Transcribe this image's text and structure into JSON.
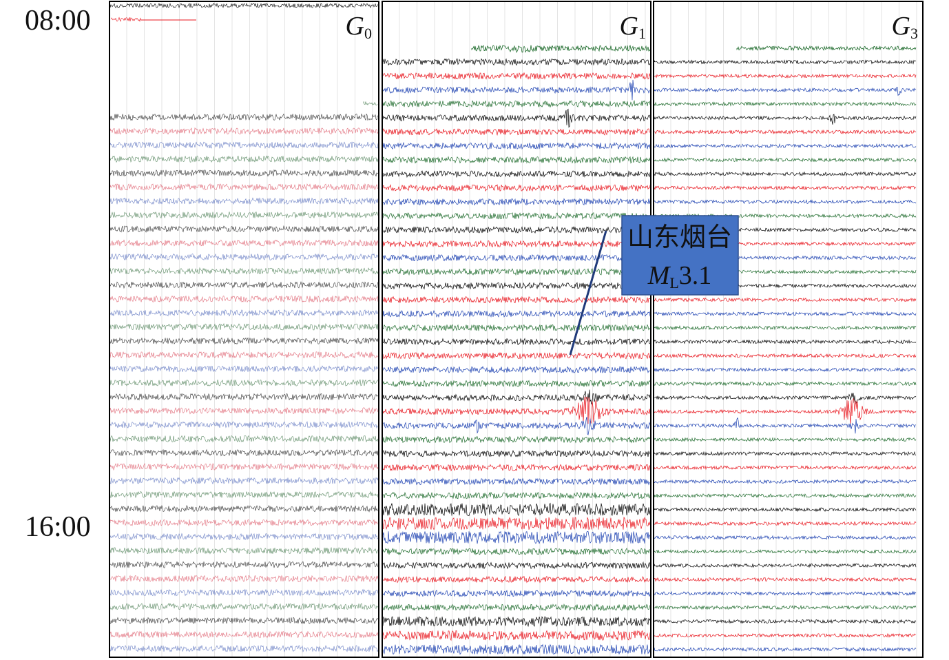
{
  "time_labels": [
    "08:00",
    "16:00"
  ],
  "panels": [
    {
      "letter": "G",
      "subscript": "0"
    },
    {
      "letter": "G",
      "subscript": "1"
    },
    {
      "letter": "G",
      "subscript": "3"
    }
  ],
  "annotation": {
    "place": "山东烟台",
    "symbol": "M",
    "symbol_subscript": "L",
    "magnitude": "3.1"
  }
}
